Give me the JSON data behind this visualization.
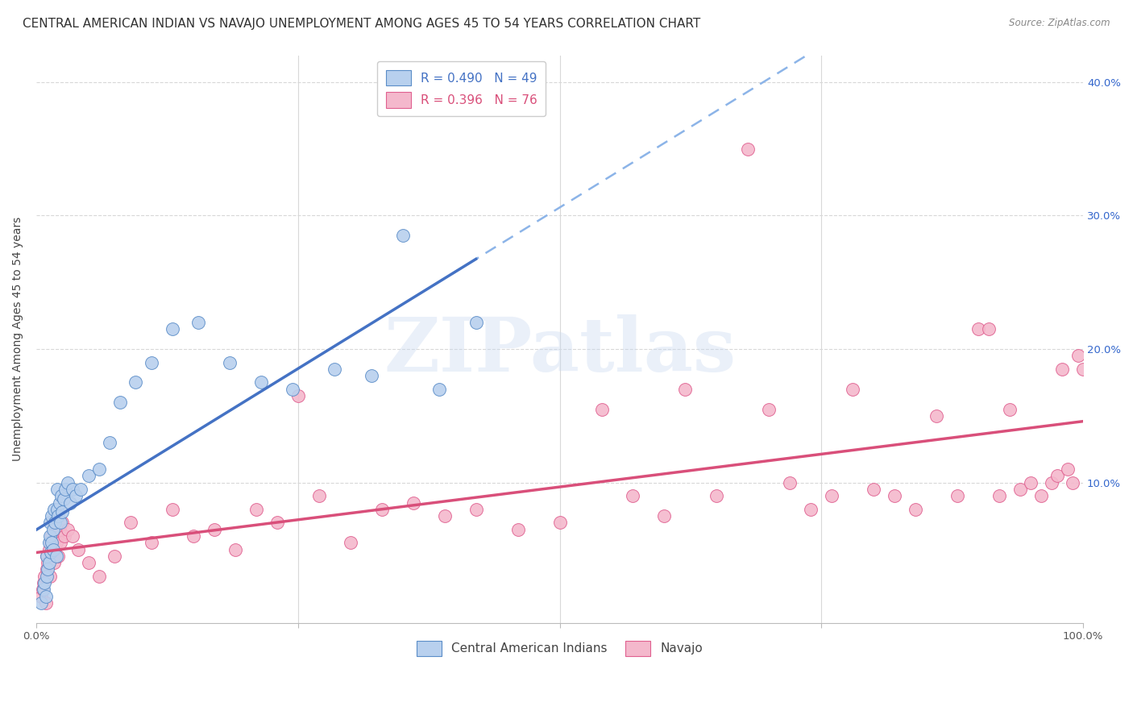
{
  "title": "CENTRAL AMERICAN INDIAN VS NAVAJO UNEMPLOYMENT AMONG AGES 45 TO 54 YEARS CORRELATION CHART",
  "source": "Source: ZipAtlas.com",
  "ylabel": "Unemployment Among Ages 45 to 54 years",
  "xlim": [
    0,
    1.0
  ],
  "ylim": [
    -0.005,
    0.42
  ],
  "watermark_text": "ZIPatlas",
  "blue_line_color": "#4472c4",
  "pink_line_color": "#d94f7a",
  "dashed_line_color": "#8cb4e8",
  "scatter_blue_facecolor": "#b8d0ee",
  "scatter_blue_edgecolor": "#5b8dc8",
  "scatter_pink_facecolor": "#f4b8cc",
  "scatter_pink_edgecolor": "#e06090",
  "background_color": "#ffffff",
  "grid_color": "#d8d8d8",
  "title_fontsize": 11,
  "axis_fontsize": 10,
  "tick_fontsize": 9.5,
  "right_tick_color": "#3366cc",
  "blue_scatter_x": [
    0.005,
    0.007,
    0.008,
    0.009,
    0.01,
    0.01,
    0.011,
    0.012,
    0.012,
    0.013,
    0.013,
    0.014,
    0.015,
    0.015,
    0.016,
    0.016,
    0.017,
    0.018,
    0.019,
    0.02,
    0.02,
    0.021,
    0.022,
    0.023,
    0.024,
    0.025,
    0.026,
    0.028,
    0.03,
    0.032,
    0.035,
    0.038,
    0.042,
    0.05,
    0.06,
    0.07,
    0.08,
    0.095,
    0.11,
    0.13,
    0.155,
    0.185,
    0.215,
    0.245,
    0.285,
    0.32,
    0.35,
    0.385,
    0.42
  ],
  "blue_scatter_y": [
    0.01,
    0.02,
    0.025,
    0.015,
    0.03,
    0.045,
    0.035,
    0.055,
    0.04,
    0.06,
    0.07,
    0.048,
    0.055,
    0.075,
    0.05,
    0.065,
    0.08,
    0.07,
    0.045,
    0.08,
    0.095,
    0.075,
    0.085,
    0.07,
    0.09,
    0.078,
    0.088,
    0.095,
    0.1,
    0.085,
    0.095,
    0.09,
    0.095,
    0.105,
    0.11,
    0.13,
    0.16,
    0.175,
    0.19,
    0.215,
    0.22,
    0.19,
    0.175,
    0.17,
    0.185,
    0.18,
    0.285,
    0.17,
    0.22
  ],
  "pink_scatter_x": [
    0.005,
    0.006,
    0.007,
    0.008,
    0.009,
    0.01,
    0.01,
    0.011,
    0.012,
    0.013,
    0.014,
    0.015,
    0.016,
    0.016,
    0.017,
    0.018,
    0.019,
    0.02,
    0.021,
    0.022,
    0.023,
    0.025,
    0.027,
    0.03,
    0.035,
    0.04,
    0.05,
    0.06,
    0.075,
    0.09,
    0.11,
    0.13,
    0.15,
    0.17,
    0.19,
    0.21,
    0.23,
    0.25,
    0.27,
    0.3,
    0.33,
    0.36,
    0.39,
    0.42,
    0.46,
    0.5,
    0.54,
    0.57,
    0.6,
    0.62,
    0.65,
    0.68,
    0.7,
    0.72,
    0.74,
    0.76,
    0.78,
    0.8,
    0.82,
    0.84,
    0.86,
    0.88,
    0.9,
    0.91,
    0.92,
    0.93,
    0.94,
    0.95,
    0.96,
    0.97,
    0.975,
    0.98,
    0.985,
    0.99,
    0.995,
    1.0
  ],
  "pink_scatter_y": [
    0.015,
    0.02,
    0.025,
    0.03,
    0.01,
    0.035,
    0.045,
    0.04,
    0.05,
    0.03,
    0.055,
    0.06,
    0.045,
    0.07,
    0.04,
    0.05,
    0.055,
    0.06,
    0.045,
    0.065,
    0.055,
    0.07,
    0.06,
    0.065,
    0.06,
    0.05,
    0.04,
    0.03,
    0.045,
    0.07,
    0.055,
    0.08,
    0.06,
    0.065,
    0.05,
    0.08,
    0.07,
    0.165,
    0.09,
    0.055,
    0.08,
    0.085,
    0.075,
    0.08,
    0.065,
    0.07,
    0.155,
    0.09,
    0.075,
    0.17,
    0.09,
    0.35,
    0.155,
    0.1,
    0.08,
    0.09,
    0.17,
    0.095,
    0.09,
    0.08,
    0.15,
    0.09,
    0.215,
    0.215,
    0.09,
    0.155,
    0.095,
    0.1,
    0.09,
    0.1,
    0.105,
    0.185,
    0.11,
    0.1,
    0.195,
    0.185
  ],
  "blue_line_x_end": 0.42,
  "dashed_line_x_start": 0.38,
  "dashed_line_x_end": 1.0
}
